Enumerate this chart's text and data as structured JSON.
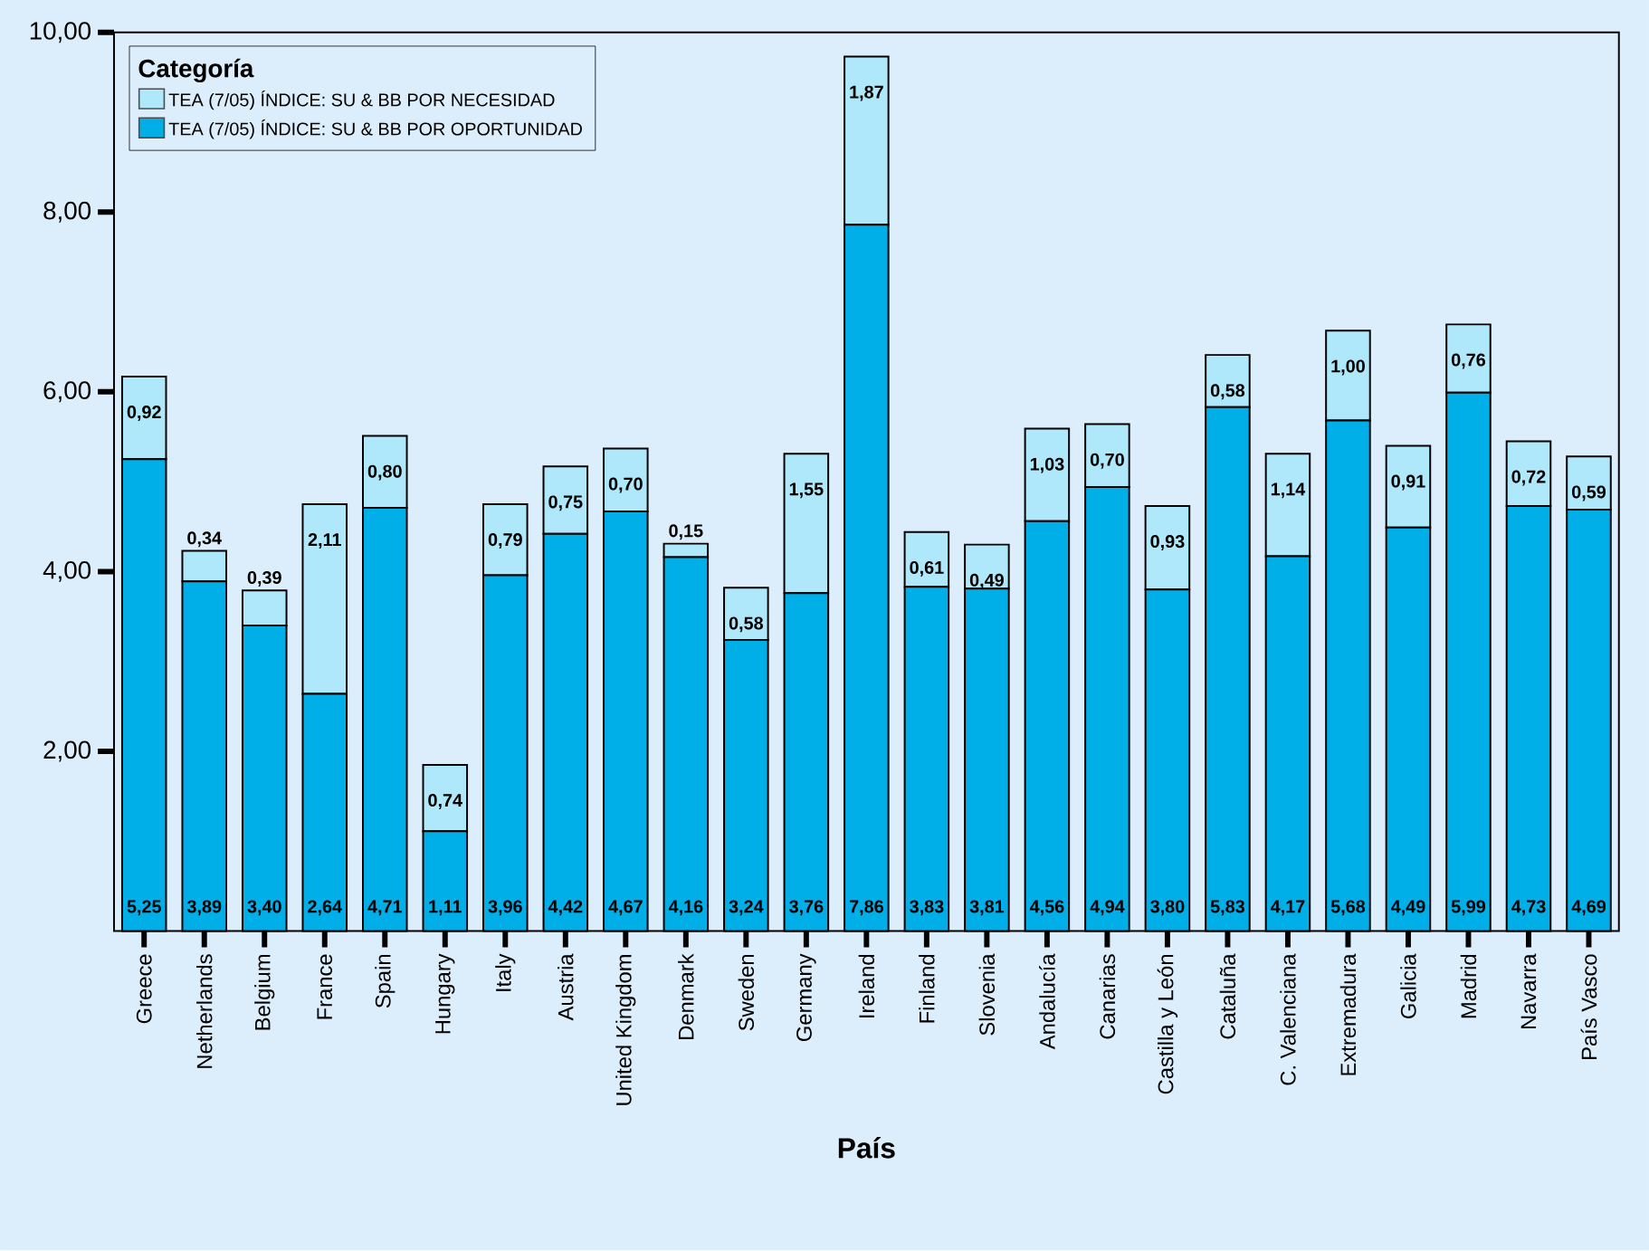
{
  "chart_data": {
    "type": "bar",
    "stacked": true,
    "xlabel": "País",
    "legend_title": "Categoría",
    "legend": "top left",
    "categories": [
      "Greece",
      "Netherlands",
      "Belgium",
      "France",
      "Spain",
      "Hungary",
      "Italy",
      "Austria",
      "United Kingdom",
      "Denmark",
      "Sweden",
      "Germany",
      "Ireland",
      "Finland",
      "Slovenia",
      "Andalucía",
      "Canarias",
      "Castilla y León",
      "Cataluña",
      "C. Valenciana",
      "Extremadura",
      "Galicia",
      "Madrid",
      "Navarra",
      "País Vasco"
    ],
    "ylim": [
      0,
      10
    ],
    "yticks": [
      {
        "value": 2,
        "label": "2,00"
      },
      {
        "value": 4,
        "label": "4,00"
      },
      {
        "value": 6,
        "label": "6,00"
      },
      {
        "value": 8,
        "label": "8,00"
      },
      {
        "value": 10,
        "label": "10,00"
      }
    ],
    "series": [
      {
        "name": "TEA  (7/05) ÍNDICE: SU & BB POR OPORTUNIDAD",
        "color": "#00aee8",
        "values": [
          5.25,
          3.89,
          3.4,
          2.64,
          4.71,
          1.11,
          3.96,
          4.42,
          4.67,
          4.16,
          3.24,
          3.76,
          7.86,
          3.83,
          3.81,
          4.56,
          4.94,
          3.8,
          5.83,
          4.17,
          5.68,
          4.49,
          5.99,
          4.73,
          4.69
        ],
        "value_labels": [
          "5,25",
          "3,89",
          "3,40",
          "2,64",
          "4,71",
          "1,11",
          "3,96",
          "4,42",
          "4,67",
          "4,16",
          "3,24",
          "3,76",
          "7,86",
          "3,83",
          "3,81",
          "4,56",
          "4,94",
          "3,80",
          "5,83",
          "4,17",
          "5,68",
          "4,49",
          "5,99",
          "4,73",
          "4,69"
        ]
      },
      {
        "name": "TEA  (7/05) ÍNDICE: SU & BB POR NECESIDAD",
        "color": "#aee8fa",
        "values": [
          0.92,
          0.34,
          0.39,
          2.11,
          0.8,
          0.74,
          0.79,
          0.75,
          0.7,
          0.15,
          0.58,
          1.55,
          1.87,
          0.61,
          0.49,
          1.03,
          0.7,
          0.93,
          0.58,
          1.14,
          1.0,
          0.91,
          0.76,
          0.72,
          0.59
        ],
        "value_labels": [
          "0,92",
          "0,34",
          "0,39",
          "2,11",
          "0,80",
          "0,74",
          "0,79",
          "0,75",
          "0,70",
          "0,15",
          "0,58",
          "1,55",
          "1,87",
          "0,61",
          "0,49",
          "1,03",
          "0,70",
          "0,93",
          "0,58",
          "1,14",
          "1,00",
          "0,91",
          "0,76",
          "0,72",
          "0,59"
        ]
      }
    ]
  }
}
